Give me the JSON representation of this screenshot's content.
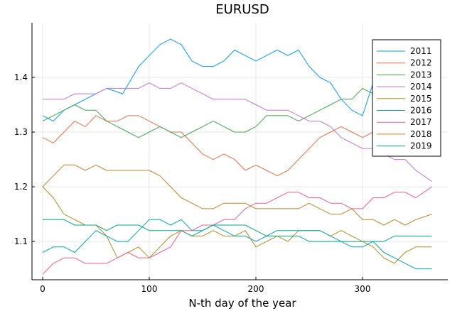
{
  "chart_data": {
    "type": "line",
    "title": "EURUSD",
    "xlabel": "N-th day of the year",
    "ylabel": "",
    "xlim": [
      -10,
      380
    ],
    "ylim": [
      1.03,
      1.5
    ],
    "xticks": [
      0,
      100,
      200,
      300
    ],
    "yticks": [
      1.1,
      1.2,
      1.3,
      1.4
    ],
    "xtick_labels": [
      "0",
      "100",
      "200",
      "300"
    ],
    "ytick_labels": [
      "1.1",
      "1.2",
      "1.3",
      "1.4"
    ],
    "grid": true,
    "legend_position": "top-right",
    "series": [
      {
        "name": "2011",
        "color": "#009AFA",
        "x": [
          0,
          10,
          20,
          30,
          40,
          50,
          60,
          75,
          90,
          100,
          110,
          120,
          130,
          140,
          150,
          160,
          170,
          180,
          190,
          200,
          210,
          220,
          230,
          240,
          250,
          260,
          270,
          280,
          290,
          300,
          310,
          320,
          330,
          340,
          350,
          365
        ],
        "y": [
          1.33,
          1.32,
          1.34,
          1.35,
          1.36,
          1.37,
          1.38,
          1.37,
          1.42,
          1.44,
          1.46,
          1.47,
          1.46,
          1.43,
          1.42,
          1.42,
          1.43,
          1.45,
          1.44,
          1.43,
          1.44,
          1.45,
          1.44,
          1.45,
          1.42,
          1.4,
          1.39,
          1.36,
          1.34,
          1.33,
          1.39,
          1.41,
          1.35,
          1.33,
          1.31,
          1.3
        ]
      },
      {
        "name": "2012",
        "color": "#E36F47",
        "x": [
          0,
          10,
          20,
          30,
          40,
          50,
          60,
          70,
          80,
          90,
          100,
          110,
          120,
          130,
          140,
          150,
          160,
          170,
          180,
          190,
          200,
          210,
          220,
          230,
          240,
          250,
          260,
          270,
          280,
          290,
          300,
          310,
          320,
          330,
          340,
          350,
          365
        ],
        "y": [
          1.29,
          1.28,
          1.3,
          1.32,
          1.31,
          1.33,
          1.32,
          1.32,
          1.33,
          1.33,
          1.32,
          1.31,
          1.3,
          1.3,
          1.28,
          1.26,
          1.25,
          1.26,
          1.25,
          1.23,
          1.24,
          1.23,
          1.22,
          1.23,
          1.25,
          1.27,
          1.29,
          1.3,
          1.31,
          1.3,
          1.29,
          1.3,
          1.29,
          1.31,
          1.31,
          1.32,
          1.32
        ]
      },
      {
        "name": "2013",
        "color": "#3EA44E",
        "x": [
          0,
          10,
          20,
          30,
          40,
          50,
          60,
          70,
          80,
          90,
          100,
          110,
          120,
          130,
          140,
          150,
          160,
          170,
          180,
          190,
          200,
          210,
          220,
          230,
          240,
          250,
          260,
          270,
          280,
          290,
          300,
          310,
          320,
          330,
          340,
          350,
          365
        ],
        "y": [
          1.32,
          1.33,
          1.34,
          1.35,
          1.34,
          1.34,
          1.32,
          1.31,
          1.3,
          1.29,
          1.3,
          1.31,
          1.3,
          1.29,
          1.3,
          1.31,
          1.32,
          1.31,
          1.3,
          1.3,
          1.31,
          1.33,
          1.33,
          1.33,
          1.32,
          1.33,
          1.34,
          1.35,
          1.36,
          1.36,
          1.38,
          1.37,
          1.36,
          1.37,
          1.37,
          1.38,
          1.38
        ]
      },
      {
        "name": "2014",
        "color": "#C371D2",
        "x": [
          0,
          10,
          20,
          30,
          40,
          50,
          60,
          70,
          80,
          90,
          100,
          110,
          120,
          130,
          140,
          150,
          160,
          170,
          180,
          190,
          200,
          210,
          220,
          230,
          240,
          250,
          260,
          270,
          280,
          290,
          300,
          310,
          320,
          330,
          340,
          350,
          365
        ],
        "y": [
          1.36,
          1.36,
          1.36,
          1.37,
          1.37,
          1.37,
          1.38,
          1.38,
          1.38,
          1.38,
          1.39,
          1.38,
          1.38,
          1.39,
          1.38,
          1.37,
          1.36,
          1.36,
          1.36,
          1.36,
          1.35,
          1.34,
          1.34,
          1.34,
          1.33,
          1.32,
          1.32,
          1.31,
          1.29,
          1.28,
          1.27,
          1.27,
          1.26,
          1.25,
          1.25,
          1.23,
          1.21
        ]
      },
      {
        "name": "2015",
        "color": "#AC8E18",
        "x": [
          0,
          10,
          20,
          30,
          40,
          50,
          60,
          70,
          80,
          90,
          100,
          110,
          120,
          130,
          140,
          150,
          160,
          170,
          180,
          190,
          200,
          210,
          220,
          230,
          240,
          250,
          260,
          270,
          280,
          290,
          300,
          310,
          320,
          330,
          340,
          350,
          365
        ],
        "y": [
          1.2,
          1.18,
          1.15,
          1.14,
          1.13,
          1.13,
          1.11,
          1.07,
          1.08,
          1.09,
          1.07,
          1.09,
          1.11,
          1.12,
          1.11,
          1.11,
          1.12,
          1.11,
          1.11,
          1.12,
          1.09,
          1.1,
          1.11,
          1.1,
          1.12,
          1.12,
          1.12,
          1.11,
          1.12,
          1.11,
          1.1,
          1.09,
          1.07,
          1.06,
          1.08,
          1.09,
          1.09
        ]
      },
      {
        "name": "2016",
        "color": "#00A9AD",
        "x": [
          0,
          10,
          20,
          30,
          40,
          50,
          60,
          70,
          80,
          90,
          100,
          110,
          120,
          130,
          140,
          150,
          160,
          170,
          180,
          190,
          200,
          210,
          220,
          230,
          240,
          250,
          260,
          270,
          280,
          290,
          300,
          310,
          320,
          330,
          340,
          350,
          365
        ],
        "y": [
          1.08,
          1.09,
          1.09,
          1.08,
          1.1,
          1.12,
          1.11,
          1.1,
          1.1,
          1.12,
          1.14,
          1.14,
          1.13,
          1.14,
          1.12,
          1.12,
          1.13,
          1.12,
          1.11,
          1.11,
          1.1,
          1.11,
          1.12,
          1.12,
          1.12,
          1.12,
          1.12,
          1.11,
          1.1,
          1.09,
          1.09,
          1.1,
          1.08,
          1.07,
          1.06,
          1.05,
          1.05
        ]
      },
      {
        "name": "2017",
        "color": "#ED5D92",
        "x": [
          0,
          10,
          20,
          30,
          40,
          50,
          60,
          70,
          80,
          90,
          100,
          110,
          120,
          130,
          140,
          150,
          160,
          170,
          180,
          190,
          200,
          210,
          220,
          230,
          240,
          250,
          260,
          270,
          280,
          290,
          300,
          310,
          320,
          330,
          340,
          350,
          365
        ],
        "y": [
          1.04,
          1.06,
          1.07,
          1.07,
          1.06,
          1.06,
          1.06,
          1.07,
          1.08,
          1.07,
          1.07,
          1.08,
          1.09,
          1.12,
          1.12,
          1.13,
          1.13,
          1.14,
          1.14,
          1.16,
          1.17,
          1.17,
          1.18,
          1.19,
          1.19,
          1.18,
          1.18,
          1.17,
          1.17,
          1.16,
          1.16,
          1.18,
          1.18,
          1.19,
          1.19,
          1.18,
          1.2
        ]
      },
      {
        "name": "2018",
        "color": "#C68125",
        "x": [
          0,
          10,
          20,
          30,
          40,
          50,
          60,
          70,
          80,
          90,
          100,
          110,
          120,
          130,
          140,
          150,
          160,
          170,
          180,
          190,
          200,
          210,
          220,
          230,
          240,
          250,
          260,
          270,
          280,
          290,
          300,
          310,
          320,
          330,
          340,
          350,
          365
        ],
        "y": [
          1.2,
          1.22,
          1.24,
          1.24,
          1.23,
          1.24,
          1.23,
          1.23,
          1.23,
          1.23,
          1.23,
          1.22,
          1.2,
          1.18,
          1.17,
          1.16,
          1.16,
          1.17,
          1.17,
          1.17,
          1.16,
          1.16,
          1.16,
          1.16,
          1.16,
          1.17,
          1.16,
          1.15,
          1.15,
          1.16,
          1.14,
          1.14,
          1.13,
          1.14,
          1.13,
          1.14,
          1.15
        ]
      },
      {
        "name": "2019",
        "color": "#00A98D",
        "x": [
          0,
          10,
          20,
          30,
          40,
          50,
          60,
          70,
          80,
          90,
          100,
          110,
          120,
          130,
          140,
          150,
          160,
          170,
          180,
          190,
          200,
          210,
          220,
          230,
          240,
          250,
          260,
          270,
          280,
          290,
          300,
          310,
          320,
          330,
          340,
          350,
          365
        ],
        "y": [
          1.14,
          1.14,
          1.14,
          1.13,
          1.13,
          1.13,
          1.12,
          1.13,
          1.13,
          1.13,
          1.12,
          1.12,
          1.12,
          1.12,
          1.11,
          1.12,
          1.13,
          1.13,
          1.13,
          1.13,
          1.12,
          1.11,
          1.11,
          1.11,
          1.11,
          1.1,
          1.1,
          1.1,
          1.1,
          1.1,
          1.1,
          1.1,
          1.1,
          1.11,
          1.11,
          1.11,
          1.11
        ]
      }
    ]
  }
}
